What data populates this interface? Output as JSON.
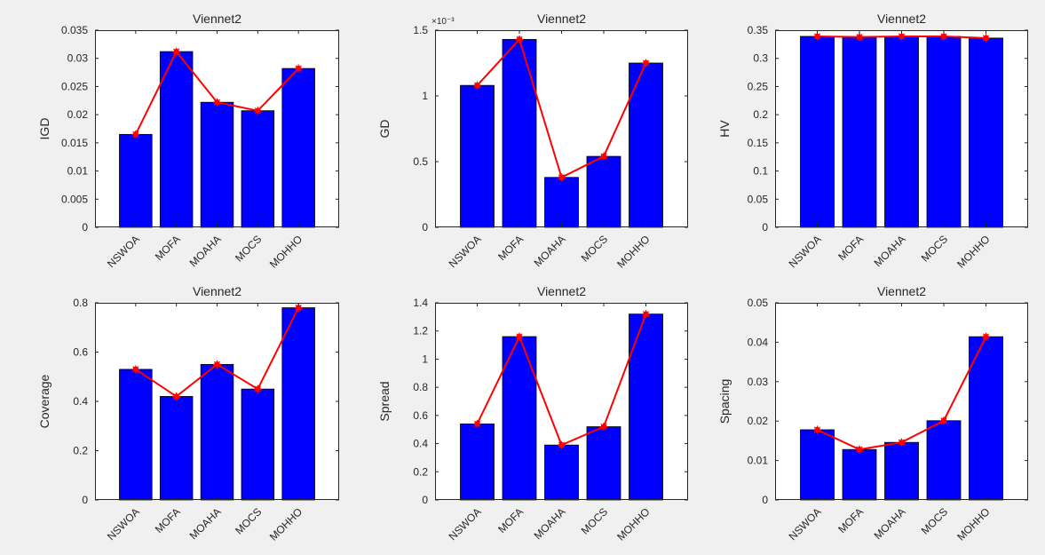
{
  "window_title": "Viennet2 metrics figure",
  "colors": {
    "background": "#f0f0f0",
    "axes_background": "#ffffff",
    "bar_fill": "#0000ff",
    "bar_edge": "#000000",
    "line": "#ff0000",
    "marker": "#ff0000",
    "text": "#262626"
  },
  "chart_data": [
    {
      "type": "bar",
      "title": "Viennet2",
      "xlabel": "",
      "ylabel": "IGD",
      "categories": [
        "NSWOA",
        "MOFA",
        "MOAHA",
        "MOCS",
        "MOHHO"
      ],
      "series": [
        {
          "name": "bars",
          "values": [
            0.0165,
            0.0312,
            0.0222,
            0.0207,
            0.0282
          ]
        },
        {
          "name": "line",
          "values": [
            0.0165,
            0.0312,
            0.0222,
            0.0207,
            0.0282
          ]
        }
      ],
      "ylim": [
        0,
        0.035
      ],
      "yticks": [
        0,
        0.005,
        0.01,
        0.015,
        0.02,
        0.025,
        0.03,
        0.035
      ],
      "ytick_labels": [
        "0",
        "0.005",
        "0.01",
        "0.015",
        "0.02",
        "0.025",
        "0.03",
        "0.035"
      ],
      "exponent_label": "",
      "grid": false
    },
    {
      "type": "bar",
      "title": "Viennet2",
      "xlabel": "",
      "ylabel": "GD",
      "categories": [
        "NSWOA",
        "MOFA",
        "MOAHA",
        "MOCS",
        "MOHHO"
      ],
      "series": [
        {
          "name": "bars",
          "values": [
            1.08,
            1.43,
            0.38,
            0.54,
            1.25
          ]
        },
        {
          "name": "line",
          "values": [
            1.08,
            1.43,
            0.38,
            0.54,
            1.25
          ]
        }
      ],
      "ylim": [
        0,
        1.5
      ],
      "yticks": [
        0,
        0.5,
        1,
        1.5
      ],
      "ytick_labels": [
        "0",
        "0.5",
        "1",
        "1.5"
      ],
      "exponent_label": "×10⁻³",
      "grid": false
    },
    {
      "type": "bar",
      "title": "Viennet2",
      "xlabel": "",
      "ylabel": "HV",
      "categories": [
        "NSWOA",
        "MOFA",
        "MOAHA",
        "MOCS",
        "MOHHO"
      ],
      "series": [
        {
          "name": "bars",
          "values": [
            0.339,
            0.338,
            0.339,
            0.339,
            0.336
          ]
        },
        {
          "name": "line",
          "values": [
            0.339,
            0.338,
            0.339,
            0.339,
            0.336
          ]
        }
      ],
      "ylim": [
        0,
        0.35
      ],
      "yticks": [
        0,
        0.05,
        0.1,
        0.15,
        0.2,
        0.25,
        0.3,
        0.35
      ],
      "ytick_labels": [
        "0",
        "0.05",
        "0.1",
        "0.15",
        "0.2",
        "0.25",
        "0.3",
        "0.35"
      ],
      "exponent_label": "",
      "grid": false
    },
    {
      "type": "bar",
      "title": "Viennet2",
      "xlabel": "",
      "ylabel": "Coverage",
      "categories": [
        "NSWOA",
        "MOFA",
        "MOAHA",
        "MOCS",
        "MOHHO"
      ],
      "series": [
        {
          "name": "bars",
          "values": [
            0.53,
            0.42,
            0.55,
            0.45,
            0.78
          ]
        },
        {
          "name": "line",
          "values": [
            0.53,
            0.42,
            0.55,
            0.45,
            0.78
          ]
        }
      ],
      "ylim": [
        0,
        0.8
      ],
      "yticks": [
        0,
        0.2,
        0.4,
        0.6,
        0.8
      ],
      "ytick_labels": [
        "0",
        "0.2",
        "0.4",
        "0.6",
        "0.8"
      ],
      "exponent_label": "",
      "grid": false
    },
    {
      "type": "bar",
      "title": "Viennet2",
      "xlabel": "",
      "ylabel": "Spread",
      "categories": [
        "NSWOA",
        "MOFA",
        "MOAHA",
        "MOCS",
        "MOHHO"
      ],
      "series": [
        {
          "name": "bars",
          "values": [
            0.54,
            1.16,
            0.39,
            0.52,
            1.32
          ]
        },
        {
          "name": "line",
          "values": [
            0.54,
            1.16,
            0.39,
            0.52,
            1.32
          ]
        }
      ],
      "ylim": [
        0,
        1.4
      ],
      "yticks": [
        0,
        0.2,
        0.4,
        0.6,
        0.8,
        1,
        1.2,
        1.4
      ],
      "ytick_labels": [
        "0",
        "0.2",
        "0.4",
        "0.6",
        "0.8",
        "1",
        "1.2",
        "1.4"
      ],
      "exponent_label": "",
      "grid": false
    },
    {
      "type": "bar",
      "title": "Viennet2",
      "xlabel": "",
      "ylabel": "Spacing",
      "categories": [
        "NSWOA",
        "MOFA",
        "MOAHA",
        "MOCS",
        "MOHHO"
      ],
      "series": [
        {
          "name": "bars",
          "values": [
            0.0178,
            0.0128,
            0.0146,
            0.0201,
            0.0414
          ]
        },
        {
          "name": "line",
          "values": [
            0.0178,
            0.0128,
            0.0146,
            0.0201,
            0.0414
          ]
        }
      ],
      "ylim": [
        0,
        0.05
      ],
      "yticks": [
        0,
        0.01,
        0.02,
        0.03,
        0.04,
        0.05
      ],
      "ytick_labels": [
        "0",
        "0.01",
        "0.02",
        "0.03",
        "0.04",
        "0.05"
      ],
      "exponent_label": "",
      "grid": false
    }
  ]
}
